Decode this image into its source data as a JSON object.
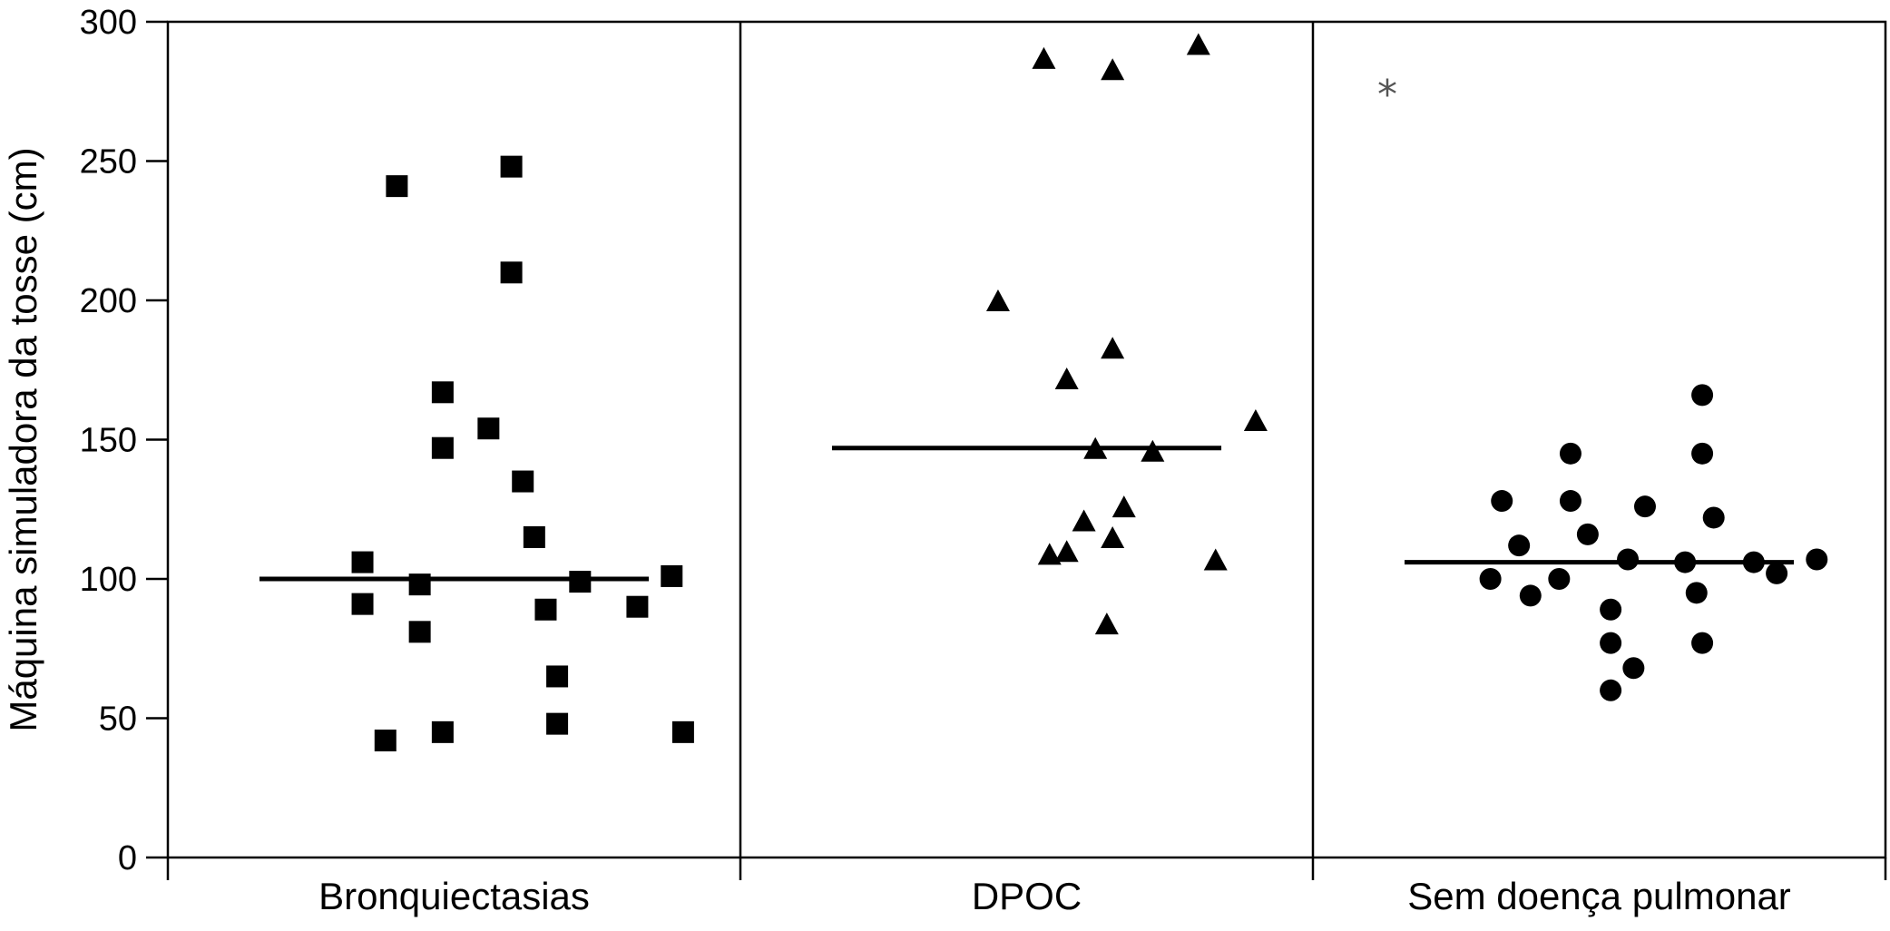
{
  "chart_data": {
    "type": "scatter",
    "title": "",
    "xlabel": "",
    "ylabel": "Máquina simuladora da tosse (cm)",
    "ylim": [
      0,
      300
    ],
    "yticks": [
      0,
      50,
      100,
      150,
      200,
      250,
      300
    ],
    "grid": false,
    "categories": [
      "Bronquiectasias",
      "DPOC",
      "Sem doença pulmonar"
    ],
    "series": [
      {
        "category": "Bronquiectasias",
        "marker": "square",
        "median": 100,
        "points": [
          {
            "offset": -0.1,
            "value": 241
          },
          {
            "offset": 0.1,
            "value": 248
          },
          {
            "offset": 0.1,
            "value": 210
          },
          {
            "offset": -0.02,
            "value": 167
          },
          {
            "offset": 0.06,
            "value": 154
          },
          {
            "offset": -0.02,
            "value": 147
          },
          {
            "offset": 0.12,
            "value": 135
          },
          {
            "offset": 0.14,
            "value": 115
          },
          {
            "offset": -0.16,
            "value": 106
          },
          {
            "offset": 0.38,
            "value": 101
          },
          {
            "offset": 0.22,
            "value": 99
          },
          {
            "offset": -0.06,
            "value": 98
          },
          {
            "offset": -0.16,
            "value": 91
          },
          {
            "offset": 0.32,
            "value": 90
          },
          {
            "offset": 0.16,
            "value": 89
          },
          {
            "offset": -0.06,
            "value": 81
          },
          {
            "offset": 0.18,
            "value": 65
          },
          {
            "offset": 0.18,
            "value": 48
          },
          {
            "offset": -0.02,
            "value": 45
          },
          {
            "offset": 0.4,
            "value": 45
          },
          {
            "offset": -0.12,
            "value": 42
          }
        ]
      },
      {
        "category": "DPOC",
        "marker": "triangle",
        "median": 147,
        "points": [
          {
            "offset": 0.03,
            "value": 287
          },
          {
            "offset": 0.15,
            "value": 283
          },
          {
            "offset": 0.3,
            "value": 292
          },
          {
            "offset": -0.05,
            "value": 200
          },
          {
            "offset": 0.15,
            "value": 183
          },
          {
            "offset": 0.07,
            "value": 172
          },
          {
            "offset": 0.4,
            "value": 157
          },
          {
            "offset": 0.12,
            "value": 147
          },
          {
            "offset": 0.22,
            "value": 146
          },
          {
            "offset": 0.17,
            "value": 126
          },
          {
            "offset": 0.1,
            "value": 121
          },
          {
            "offset": 0.15,
            "value": 115
          },
          {
            "offset": 0.07,
            "value": 110
          },
          {
            "offset": 0.04,
            "value": 109
          },
          {
            "offset": 0.33,
            "value": 107
          },
          {
            "offset": 0.14,
            "value": 84
          }
        ],
        "outliers": [
          {
            "offset": 0.63,
            "value": 275
          }
        ]
      },
      {
        "category": "Sem doença pulmonar",
        "marker": "circle",
        "median": 106,
        "points": [
          {
            "offset": 0.18,
            "value": 166
          },
          {
            "offset": -0.05,
            "value": 145
          },
          {
            "offset": 0.18,
            "value": 145
          },
          {
            "offset": -0.17,
            "value": 128
          },
          {
            "offset": -0.05,
            "value": 128
          },
          {
            "offset": 0.08,
            "value": 126
          },
          {
            "offset": 0.2,
            "value": 122
          },
          {
            "offset": -0.02,
            "value": 116
          },
          {
            "offset": -0.14,
            "value": 112
          },
          {
            "offset": 0.05,
            "value": 107
          },
          {
            "offset": 0.15,
            "value": 106
          },
          {
            "offset": 0.27,
            "value": 106
          },
          {
            "offset": 0.38,
            "value": 107
          },
          {
            "offset": 0.31,
            "value": 102
          },
          {
            "offset": -0.19,
            "value": 100
          },
          {
            "offset": -0.07,
            "value": 100
          },
          {
            "offset": -0.12,
            "value": 94
          },
          {
            "offset": 0.17,
            "value": 95
          },
          {
            "offset": 0.02,
            "value": 89
          },
          {
            "offset": 0.02,
            "value": 77
          },
          {
            "offset": 0.18,
            "value": 77
          },
          {
            "offset": 0.06,
            "value": 68
          },
          {
            "offset": 0.02,
            "value": 60
          }
        ]
      }
    ]
  }
}
